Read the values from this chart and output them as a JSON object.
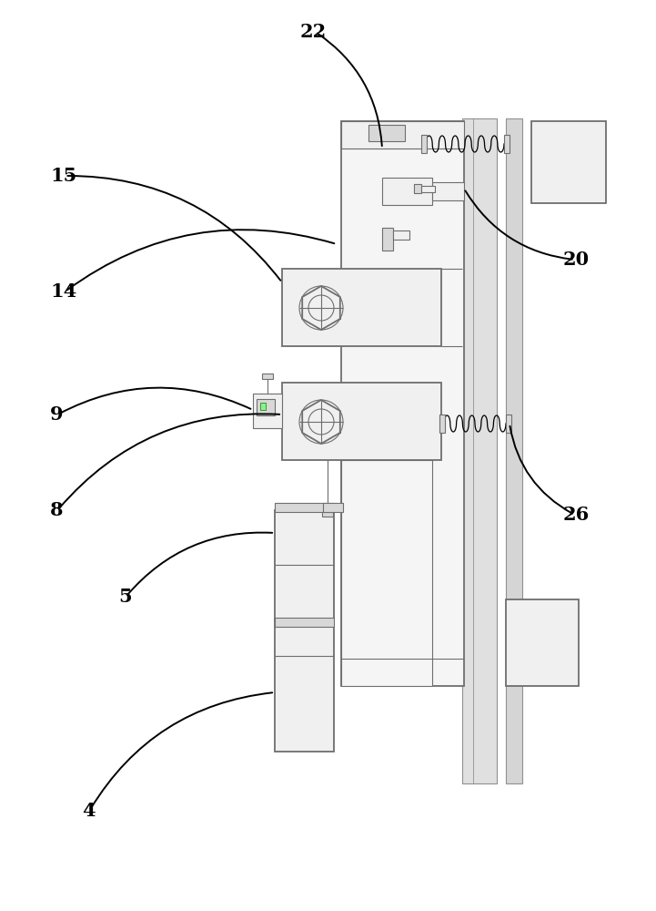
{
  "bg_color": "#ffffff",
  "lc": "#000000",
  "gc": "#6e6e6e",
  "lgc": "#b0b0b0",
  "dgc": "#909090",
  "fc_main": "#f0f0f0",
  "fc_light": "#f8f8f8",
  "fc_gray": "#d8d8d8",
  "green": "#008000",
  "figsize": [
    7.21,
    10.0
  ],
  "dpi": 100
}
